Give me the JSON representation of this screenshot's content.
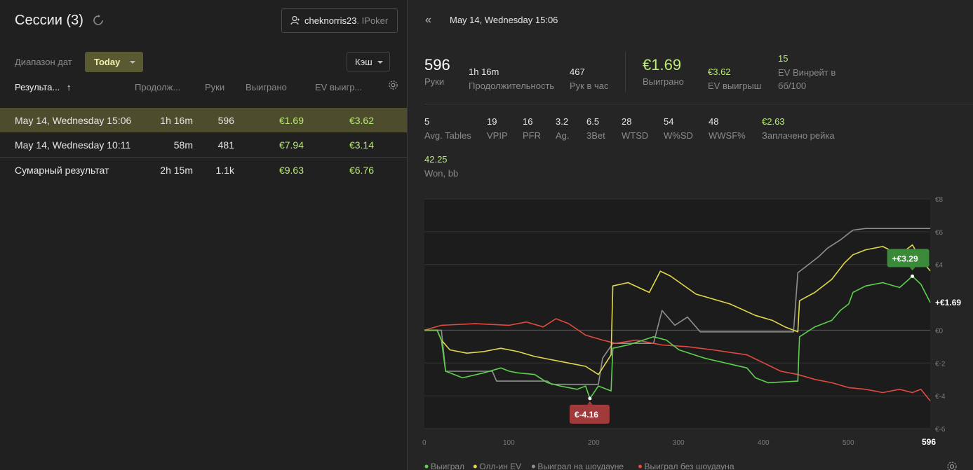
{
  "left": {
    "title": "Сессии (3)",
    "user": {
      "name": "cheknorris23",
      "room": ". IPoker"
    },
    "date_range_label": "Диапазон дат",
    "date_range_value": "Today",
    "game_type": "Кэш",
    "columns": [
      "Результа...",
      "Продолж...",
      "Руки",
      "Выиграно",
      "EV выигр..."
    ],
    "sort_arrow": "↑",
    "rows": [
      {
        "name": "May 14, Wednesday 15:06",
        "duration": "1h 16m",
        "hands": "596",
        "won": "€1.69",
        "ev": "€3.62",
        "selected": true
      },
      {
        "name": "May 14, Wednesday 10:11",
        "duration": "58m",
        "hands": "481",
        "won": "€7.94",
        "ev": "€3.14",
        "selected": false
      },
      {
        "name": "Сумарный результат",
        "duration": "2h 15m",
        "hands": "1.1k",
        "won": "€9.63",
        "ev": "€6.76",
        "selected": false
      }
    ]
  },
  "right": {
    "back_icon": "«",
    "session_title": "May 14, Wednesday 15:06",
    "summary": {
      "hands": {
        "value": "596",
        "label": "Руки"
      },
      "duration": {
        "value": "1h 16m",
        "label": "Продолжительность"
      },
      "hands_per_hour": {
        "value": "467",
        "label": "Рук в час"
      },
      "won": {
        "value": "€1.69",
        "label": "Выиграно"
      },
      "ev_won": {
        "value": "€3.62",
        "label": "EV выигрыш"
      },
      "ev_winrate": {
        "value": "15",
        "label_line1": "EV Винрейт в",
        "label_line2": "бб/100"
      }
    },
    "stats": [
      {
        "value": "5",
        "label": "Avg. Tables"
      },
      {
        "value": "19",
        "label": "VPIP"
      },
      {
        "value": "16",
        "label": "PFR"
      },
      {
        "value": "3.2",
        "label": "Ag."
      },
      {
        "value": "6.5",
        "label": "3Bet"
      },
      {
        "value": "28",
        "label": "WTSD"
      },
      {
        "value": "54",
        "label": "W%SD"
      },
      {
        "value": "48",
        "label": "WWSF%"
      },
      {
        "value": "€2.63",
        "label": "Заплачено рейка"
      }
    ],
    "won_bb": {
      "value": "42.25",
      "label": "Won, bb"
    }
  },
  "chart_data": {
    "type": "line",
    "x_ticks": [
      "0",
      "100",
      "200",
      "300",
      "400",
      "500",
      "596"
    ],
    "y_ticks": [
      "€8",
      "€6",
      "€4",
      "€0",
      "€-2",
      "€-4",
      "€-6"
    ],
    "xlim": [
      0,
      596
    ],
    "ylim": [
      -6,
      8
    ],
    "grid": true,
    "legend_position": "bottom",
    "annotations": {
      "max": "+€3.29",
      "min": "€-4.16",
      "final": "+€1.69"
    },
    "series": [
      {
        "name": "Выиграл",
        "color": "#5fcf4f",
        "points": [
          [
            0,
            0
          ],
          [
            15,
            0
          ],
          [
            20,
            -0.6
          ],
          [
            25,
            -2.5
          ],
          [
            45,
            -2.9
          ],
          [
            70,
            -2.6
          ],
          [
            90,
            -2.3
          ],
          [
            100,
            -2.5
          ],
          [
            110,
            -2.6
          ],
          [
            130,
            -2.7
          ],
          [
            145,
            -3.2
          ],
          [
            160,
            -3.4
          ],
          [
            180,
            -3.6
          ],
          [
            190,
            -3.4
          ],
          [
            195,
            -4.16
          ],
          [
            205,
            -3.4
          ],
          [
            220,
            -3.7
          ],
          [
            222,
            -1.1
          ],
          [
            240,
            -0.9
          ],
          [
            270,
            -0.4
          ],
          [
            285,
            -0.6
          ],
          [
            300,
            -1.2
          ],
          [
            330,
            -1.7
          ],
          [
            380,
            -2.3
          ],
          [
            390,
            -2.9
          ],
          [
            405,
            -3.2
          ],
          [
            440,
            -3.1
          ],
          [
            442,
            -0.4
          ],
          [
            460,
            0.2
          ],
          [
            480,
            0.6
          ],
          [
            490,
            1.2
          ],
          [
            500,
            1.6
          ],
          [
            505,
            2.3
          ],
          [
            520,
            2.7
          ],
          [
            540,
            2.9
          ],
          [
            560,
            2.6
          ],
          [
            575,
            3.29
          ],
          [
            585,
            2.8
          ],
          [
            596,
            1.69
          ]
        ]
      },
      {
        "name": "Олл-ин EV",
        "color": "#e2d84b",
        "points": [
          [
            0,
            0
          ],
          [
            15,
            0
          ],
          [
            20,
            -0.6
          ],
          [
            30,
            -1.2
          ],
          [
            50,
            -1.4
          ],
          [
            70,
            -1.3
          ],
          [
            90,
            -1.1
          ],
          [
            110,
            -1.3
          ],
          [
            130,
            -1.6
          ],
          [
            150,
            -1.8
          ],
          [
            170,
            -2.0
          ],
          [
            190,
            -2.2
          ],
          [
            205,
            -2.7
          ],
          [
            220,
            -1.5
          ],
          [
            222,
            2.7
          ],
          [
            240,
            2.9
          ],
          [
            265,
            2.3
          ],
          [
            278,
            3.6
          ],
          [
            290,
            3.3
          ],
          [
            320,
            2.2
          ],
          [
            360,
            1.6
          ],
          [
            390,
            0.9
          ],
          [
            410,
            0.6
          ],
          [
            425,
            0.2
          ],
          [
            440,
            -0.1
          ],
          [
            442,
            1.8
          ],
          [
            460,
            2.3
          ],
          [
            480,
            3.1
          ],
          [
            495,
            4.1
          ],
          [
            505,
            4.6
          ],
          [
            520,
            4.9
          ],
          [
            540,
            5.1
          ],
          [
            560,
            4.6
          ],
          [
            575,
            5.2
          ],
          [
            585,
            4.3
          ],
          [
            596,
            3.62
          ]
        ]
      },
      {
        "name": "Выиграл на шоудауне",
        "color": "#8f8f8f",
        "points": [
          [
            0,
            0
          ],
          [
            20,
            0
          ],
          [
            25,
            -2.5
          ],
          [
            80,
            -2.5
          ],
          [
            85,
            -3.1
          ],
          [
            145,
            -3.1
          ],
          [
            150,
            -3.3
          ],
          [
            205,
            -3.3
          ],
          [
            210,
            -1.7
          ],
          [
            222,
            -0.8
          ],
          [
            270,
            -0.8
          ],
          [
            280,
            1.2
          ],
          [
            295,
            0.3
          ],
          [
            310,
            0.8
          ],
          [
            325,
            -0.1
          ],
          [
            360,
            -0.1
          ],
          [
            400,
            -0.1
          ],
          [
            435,
            -0.1
          ],
          [
            440,
            3.5
          ],
          [
            450,
            3.9
          ],
          [
            465,
            4.5
          ],
          [
            475,
            5.0
          ],
          [
            490,
            5.5
          ],
          [
            505,
            6.1
          ],
          [
            520,
            6.2
          ],
          [
            596,
            6.2
          ]
        ]
      },
      {
        "name": "Выиграл без шоудауна",
        "color": "#e24a40",
        "points": [
          [
            0,
            0
          ],
          [
            20,
            0.3
          ],
          [
            60,
            0.4
          ],
          [
            100,
            0.3
          ],
          [
            120,
            0.5
          ],
          [
            140,
            0.2
          ],
          [
            155,
            0.7
          ],
          [
            170,
            0.4
          ],
          [
            190,
            -0.3
          ],
          [
            210,
            -0.6
          ],
          [
            225,
            -0.8
          ],
          [
            250,
            -0.6
          ],
          [
            280,
            -0.9
          ],
          [
            310,
            -1.0
          ],
          [
            340,
            -1.2
          ],
          [
            380,
            -1.5
          ],
          [
            400,
            -2.0
          ],
          [
            420,
            -2.5
          ],
          [
            440,
            -2.7
          ],
          [
            460,
            -3.0
          ],
          [
            480,
            -3.2
          ],
          [
            500,
            -3.5
          ],
          [
            520,
            -3.6
          ],
          [
            540,
            -3.8
          ],
          [
            560,
            -3.6
          ],
          [
            575,
            -3.8
          ],
          [
            585,
            -3.6
          ],
          [
            596,
            -4.3
          ]
        ]
      }
    ]
  }
}
